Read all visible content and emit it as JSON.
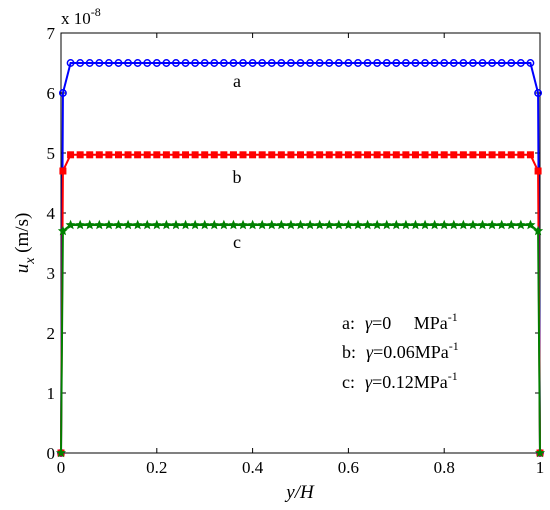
{
  "chart_data": {
    "type": "line",
    "xlabel": "y/H",
    "ylabel_main": "u",
    "ylabel_sub": "x",
    "ylabel_unit": " (m/s)",
    "y_scale_label": "x 10",
    "y_scale_exp": "-8",
    "xlim": [
      0,
      1
    ],
    "ylim": [
      0,
      7
    ],
    "x_ticks": [
      0,
      0.2,
      0.4,
      0.6,
      0.8,
      1
    ],
    "x_tick_labels": [
      "0",
      "0.2",
      "0.4",
      "0.6",
      "0.8",
      "1"
    ],
    "y_ticks": [
      0,
      1,
      2,
      3,
      4,
      5,
      6,
      7
    ],
    "y_tick_labels": [
      "0",
      "1",
      "2",
      "3",
      "4",
      "5",
      "6",
      "7"
    ],
    "grid": false,
    "legend_placement": "bottom-right",
    "series": [
      {
        "label": "a",
        "color": "#0000ff",
        "marker": "circle",
        "plateau": 6.5,
        "edge": [
          0.0,
          6.0
        ],
        "legend_prefix": "a:",
        "legend_value": "=0     MPa",
        "legend_exp": "-1"
      },
      {
        "label": "b",
        "color": "#ff0000",
        "marker": "square",
        "plateau": 4.97,
        "edge": [
          0.0,
          4.7
        ],
        "legend_prefix": "b:",
        "legend_value": "=0.06MPa",
        "legend_exp": "-1"
      },
      {
        "label": "c",
        "color": "#008000",
        "marker": "star",
        "plateau": 3.8,
        "edge": [
          0.0,
          3.7
        ],
        "legend_prefix": "c:",
        "legend_value": "=0.12MPa",
        "legend_exp": "-1"
      }
    ],
    "legend_symbol": "γ"
  }
}
